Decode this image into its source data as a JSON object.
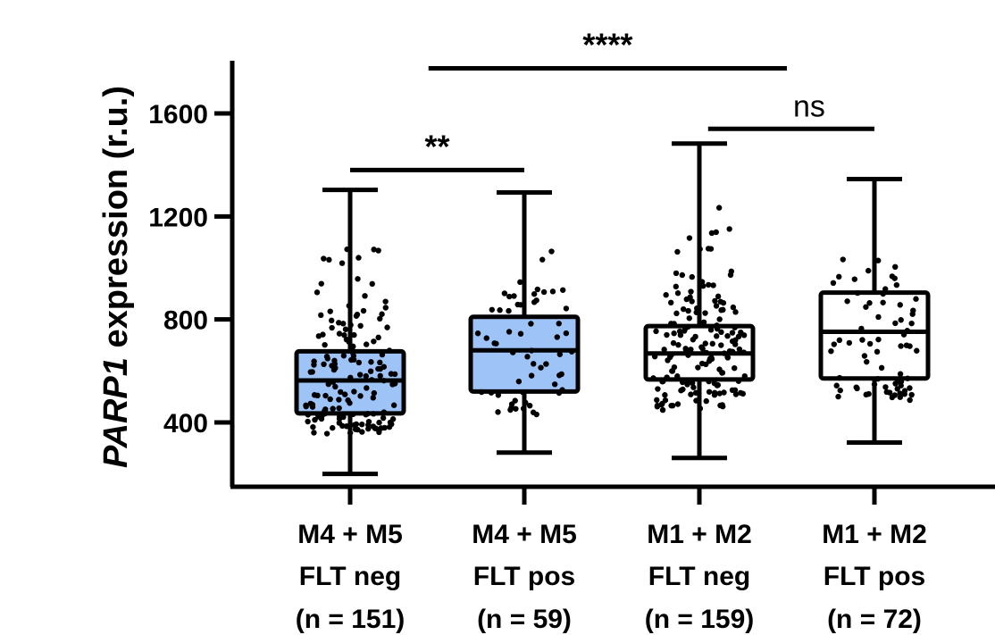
{
  "chart_data": {
    "type": "box",
    "ylabel_italic": "PARP1",
    "ylabel_rest": " expression (r.u.)",
    "ylim": [
      200,
      1800
    ],
    "yticks": [
      400,
      800,
      1200,
      1600
    ],
    "ytick_labels": [
      "400",
      "800",
      "1200",
      "1600"
    ],
    "grid": false,
    "colors": {
      "filled": "#9ec3f7",
      "unfilled": "#ffffff",
      "stroke": "#000000"
    },
    "groups": [
      {
        "label_lines": [
          "M4 + M5",
          "FLT neg",
          "(n = 151)"
        ],
        "n": 151,
        "filled": true,
        "min": 200,
        "q1": 435,
        "median": 563,
        "q3": 676,
        "max": 1303
      },
      {
        "label_lines": [
          "M4 + M5",
          "FLT pos",
          "(n = 59)"
        ],
        "n": 59,
        "filled": true,
        "min": 283,
        "q1": 520,
        "median": 680,
        "q3": 810,
        "max": 1293
      },
      {
        "label_lines": [
          "M1 + M2",
          "FLT neg",
          "(n = 159)"
        ],
        "n": 159,
        "filled": false,
        "min": 262,
        "q1": 567,
        "median": 668,
        "q3": 774,
        "max": 1483
      },
      {
        "label_lines": [
          "M1 + M2",
          "FLT pos",
          "(n = 72)"
        ],
        "n": 72,
        "filled": false,
        "min": 322,
        "q1": 571,
        "median": 752,
        "q3": 904,
        "max": 1345
      }
    ],
    "significance": [
      {
        "label": "**",
        "from_group": 0,
        "to_group": 1,
        "y": 1380,
        "style": "bold"
      },
      {
        "label": "****",
        "from_group": 0.45,
        "to_group": 2.5,
        "y": 1775,
        "style": "bold"
      },
      {
        "label": "ns",
        "from_group": 2.05,
        "to_group": 3,
        "y": 1540,
        "style": "normal"
      }
    ]
  }
}
